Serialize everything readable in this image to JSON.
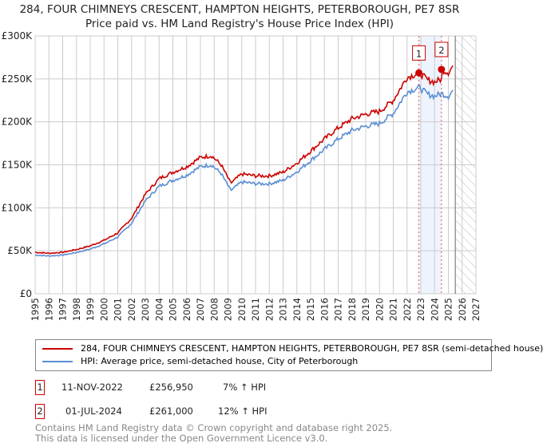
{
  "title": "284, FOUR CHIMNEYS CRESCENT, HAMPTON HEIGHTS, PETERBOROUGH, PE7 8SR",
  "subtitle": "Price paid vs. HM Land Registry's House Price Index (HPI)",
  "colors": {
    "property": "#cc0000",
    "hpi": "#5b8fd4",
    "band": "#eef4fd"
  },
  "chart_data": {
    "type": "line",
    "xlim": [
      1995,
      2027
    ],
    "ylim": [
      0,
      300000
    ],
    "yticks": [
      {
        "v": 0,
        "label": "£0"
      },
      {
        "v": 50000,
        "label": "£50K"
      },
      {
        "v": 100000,
        "label": "£100K"
      },
      {
        "v": 150000,
        "label": "£150K"
      },
      {
        "v": 200000,
        "label": "£200K"
      },
      {
        "v": 250000,
        "label": "£250K"
      },
      {
        "v": 300000,
        "label": "£300K"
      }
    ],
    "xticks": [
      "1995",
      "1996",
      "1997",
      "1998",
      "1999",
      "2000",
      "2001",
      "2002",
      "2003",
      "2004",
      "2005",
      "2006",
      "2007",
      "2008",
      "2009",
      "2010",
      "2011",
      "2012",
      "2013",
      "2014",
      "2015",
      "2016",
      "2017",
      "2018",
      "2019",
      "2020",
      "2021",
      "2022",
      "2023",
      "2024",
      "2025",
      "2026",
      "2027"
    ],
    "hpi_series": {
      "name": "HPI: Average price, semi-detached house, City of Peterborough",
      "x": [
        1995,
        1996,
        1997,
        1998,
        1999,
        2000,
        2001,
        2002,
        2003,
        2004,
        2005,
        2006,
        2007,
        2007.8,
        2008.5,
        2009.2,
        2010,
        2011,
        2012,
        2013,
        2014,
        2015,
        2016,
        2017,
        2018,
        2019,
        2020,
        2021,
        2022,
        2022.9,
        2023.5,
        2024,
        2024.5,
        2025,
        2025.4
      ],
      "y": [
        45000,
        44000,
        45000,
        48000,
        52000,
        58000,
        66000,
        82000,
        108000,
        125000,
        132000,
        138000,
        148000,
        150000,
        140000,
        120000,
        130000,
        128000,
        128000,
        132000,
        142000,
        155000,
        168000,
        180000,
        190000,
        195000,
        198000,
        210000,
        235000,
        240000,
        232000,
        230000,
        233000,
        230000,
        238000
      ]
    },
    "property_series": {
      "name": "284, FOUR CHIMNEYS CRESCENT, HAMPTON HEIGHTS, PETERBOROUGH, PE7 8SR (semi-detached house)"
    },
    "sales": [
      {
        "id": "1",
        "x": 2022.86,
        "y": 256950
      },
      {
        "id": "2",
        "x": 2024.5,
        "y": 261000
      }
    ],
    "hatch_from": 2025.5,
    "legend": "below"
  },
  "legend": {
    "property": "284, FOUR CHIMNEYS CRESCENT, HAMPTON HEIGHTS, PETERBOROUGH, PE7 8SR (semi-detached house)",
    "hpi": "HPI: Average price, semi-detached house, City of Peterborough"
  },
  "transactions": [
    {
      "id": "1",
      "date": "11-NOV-2022",
      "price": "£256,950",
      "hpi": "7% ↑ HPI"
    },
    {
      "id": "2",
      "date": "01-JUL-2024",
      "price": "£261,000",
      "hpi": "12% ↑ HPI"
    }
  ],
  "footer": {
    "line1": "Contains HM Land Registry data © Crown copyright and database right 2025.",
    "line2": "This data is licensed under the Open Government Licence v3.0."
  }
}
